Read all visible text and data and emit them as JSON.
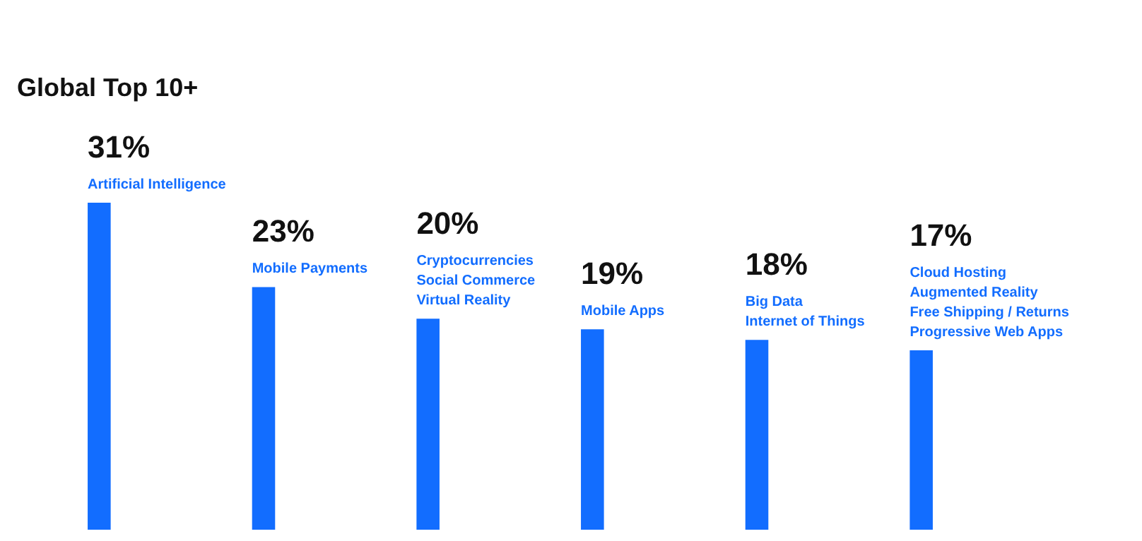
{
  "chart_data": {
    "type": "bar",
    "title": "Global Top 10+",
    "categories": [
      "Artificial Intelligence",
      "Mobile Payments",
      "Cryptocurrencies\nSocial Commerce\nVirtual Reality",
      "Mobile Apps",
      "Big Data\nInternet of Things",
      "Cloud Hosting\nAugmented Reality\nFree Shipping / Returns\nProgressive Web Apps"
    ],
    "values": [
      31,
      23,
      20,
      19,
      18,
      17
    ],
    "value_labels": [
      "31%",
      "23%",
      "20%",
      "19%",
      "18%",
      "17%"
    ],
    "color": "#126dff",
    "tick_labels": false,
    "legend": false
  }
}
